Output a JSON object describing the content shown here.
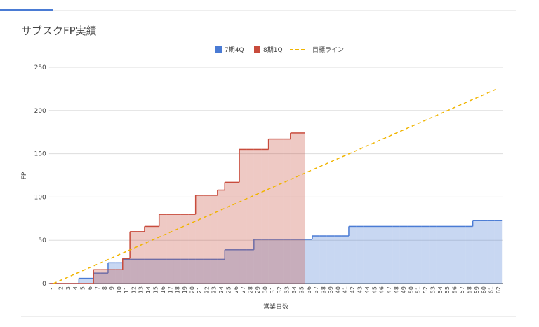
{
  "chart_data": {
    "type": "area",
    "stepped": true,
    "title": "サブスクFP実績",
    "x_label": "営業日数",
    "y_label": "FP",
    "categories": [
      1,
      2,
      3,
      4,
      5,
      6,
      7,
      8,
      9,
      10,
      11,
      12,
      13,
      14,
      15,
      16,
      17,
      18,
      19,
      20,
      21,
      22,
      23,
      24,
      25,
      26,
      27,
      28,
      29,
      30,
      31,
      32,
      33,
      34,
      35,
      36,
      37,
      38,
      39,
      40,
      41,
      42,
      43,
      44,
      45,
      46,
      47,
      48,
      49,
      50,
      51,
      52,
      53,
      54,
      55,
      56,
      57,
      58,
      59,
      60,
      61,
      62
    ],
    "series": [
      {
        "name": "7期4Q",
        "type": "area",
        "color": "#4a7bd4",
        "values": [
          0,
          0,
          0,
          0,
          6,
          6,
          12,
          12,
          24,
          24,
          28,
          28,
          28,
          28,
          28,
          28,
          28,
          28,
          28,
          28,
          28,
          28,
          28,
          28,
          39,
          39,
          39,
          39,
          51,
          51,
          51,
          51,
          51,
          51,
          51,
          51,
          55,
          55,
          55,
          55,
          55,
          66,
          66,
          66,
          66,
          66,
          66,
          66,
          66,
          66,
          66,
          66,
          66,
          66,
          66,
          66,
          66,
          66,
          73,
          73,
          73,
          73
        ]
      },
      {
        "name": "8期1Q",
        "type": "area",
        "color": "#c84b3c",
        "values": [
          0,
          0,
          0,
          0,
          0,
          0,
          16,
          16,
          16,
          16,
          29,
          60,
          60,
          66,
          66,
          80,
          80,
          80,
          80,
          80,
          102,
          102,
          102,
          108,
          117,
          117,
          155,
          155,
          155,
          155,
          167,
          167,
          167,
          174,
          174,
          null,
          null,
          null,
          null,
          null,
          null,
          null,
          null,
          null,
          null,
          null,
          null,
          null,
          null,
          null,
          null,
          null,
          null,
          null,
          null,
          null,
          null,
          null,
          null,
          null,
          null,
          null
        ]
      },
      {
        "name": "目標ライン",
        "type": "line",
        "line_style": "dashed",
        "color": "#f0b400",
        "values": [
          0,
          3.7,
          7.4,
          11.1,
          14.8,
          18.5,
          22.2,
          25.9,
          29.6,
          33.3,
          37,
          40.7,
          44.4,
          48.1,
          51.8,
          55.5,
          59.2,
          62.9,
          66.6,
          70.3,
          74,
          77.7,
          81.4,
          85.1,
          88.8,
          92.5,
          96.2,
          99.9,
          103.6,
          107.3,
          111,
          114.7,
          118.4,
          122.1,
          125.8,
          129.5,
          133.2,
          136.9,
          140.6,
          144.3,
          148,
          151.7,
          155.4,
          159.1,
          162.8,
          166.5,
          170.2,
          173.9,
          177.6,
          181.3,
          185,
          188.7,
          192.4,
          196.1,
          199.8,
          203.5,
          207.2,
          210.9,
          214.6,
          218.3,
          222,
          225.7
        ]
      }
    ],
    "ylim": [
      0,
      250
    ],
    "yticks": [
      0,
      50,
      100,
      150,
      200,
      250
    ],
    "grid": true,
    "legend": "top"
  }
}
